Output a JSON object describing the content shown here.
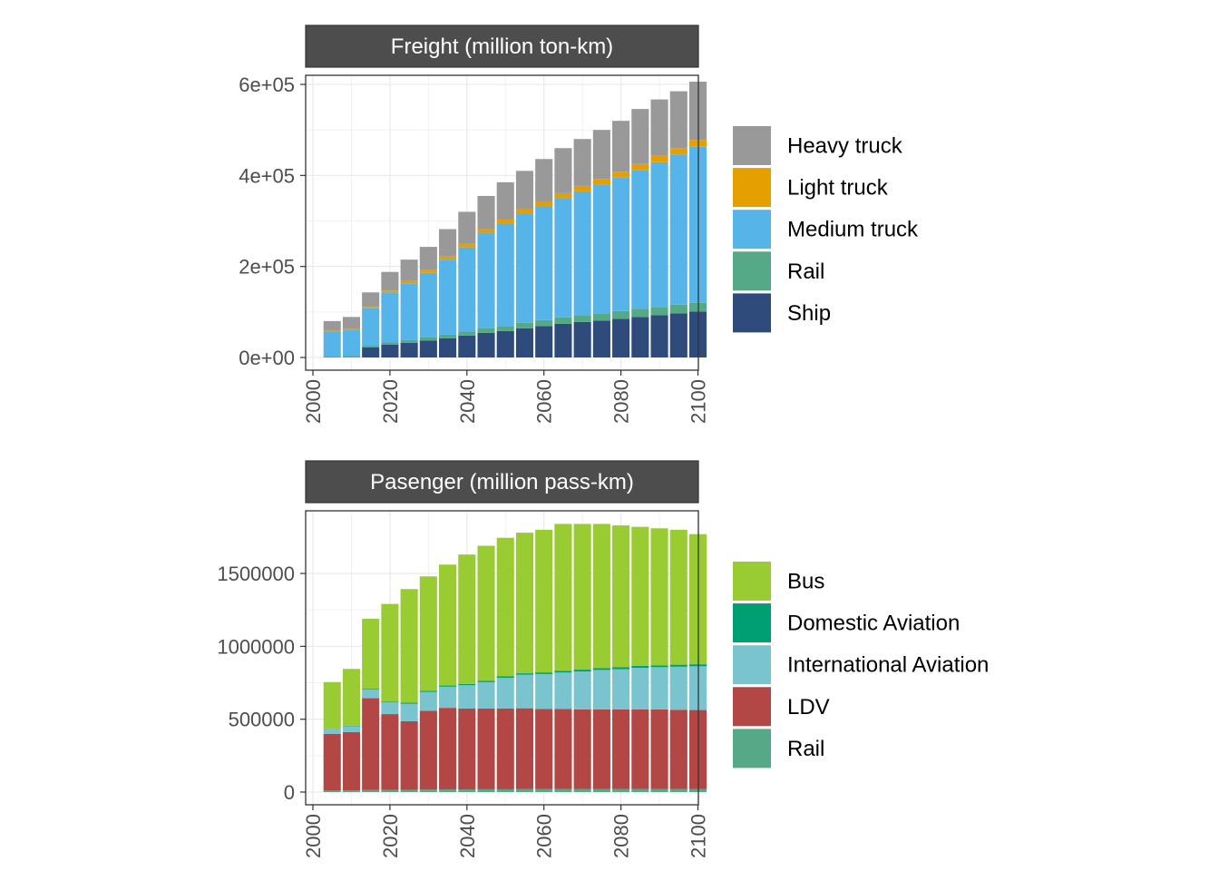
{
  "chart_data": [
    {
      "type": "bar",
      "stacked": true,
      "title": "Freight (million ton-km)",
      "x": [
        2005,
        2010,
        2015,
        2020,
        2025,
        2030,
        2035,
        2040,
        2045,
        2050,
        2055,
        2060,
        2065,
        2070,
        2075,
        2080,
        2085,
        2090,
        2095,
        2100
      ],
      "xlim": [
        2000,
        2102
      ],
      "ylim": [
        0,
        620000
      ],
      "x_ticks": [
        2000,
        2020,
        2040,
        2060,
        2080,
        2100
      ],
      "y_ticks": [
        0,
        200000,
        400000,
        600000
      ],
      "y_tick_labels": [
        "0e+00",
        "2e+05",
        "4e+05",
        "6e+05"
      ],
      "grid": true,
      "legend_position": "right",
      "series": [
        {
          "name": "Ship",
          "color": "#2F4B7C",
          "values": [
            0,
            0,
            22000,
            28000,
            32000,
            37000,
            42000,
            48000,
            54000,
            58000,
            64000,
            69000,
            74000,
            78000,
            81000,
            85000,
            89000,
            93000,
            97000,
            101000
          ]
        },
        {
          "name": "Rail",
          "color": "#56A986",
          "values": [
            2000,
            3000,
            4000,
            5000,
            6000,
            7000,
            8000,
            9000,
            10000,
            11000,
            12000,
            13000,
            14000,
            15000,
            16000,
            17000,
            18000,
            18000,
            19000,
            19000
          ]
        },
        {
          "name": "Medium truck",
          "color": "#56B4E9",
          "values": [
            55000,
            58000,
            82000,
            110000,
            125000,
            142000,
            165000,
            185000,
            210000,
            225000,
            240000,
            250000,
            262000,
            272000,
            283000,
            293000,
            305000,
            318000,
            330000,
            343000
          ]
        },
        {
          "name": "Light truck",
          "color": "#E69F00",
          "values": [
            2000,
            2000,
            3000,
            4000,
            5000,
            6000,
            7000,
            8000,
            8000,
            9000,
            10000,
            10000,
            11000,
            12000,
            12000,
            13000,
            13000,
            14000,
            14000,
            15000
          ]
        },
        {
          "name": "Heavy truck",
          "color": "#999999",
          "values": [
            21000,
            26000,
            32000,
            41000,
            47000,
            51000,
            60000,
            70000,
            73000,
            82000,
            84000,
            94000,
            99000,
            103000,
            108000,
            112000,
            121000,
            124000,
            125000,
            128000
          ]
        }
      ]
    },
    {
      "type": "bar",
      "stacked": true,
      "title": "Pasenger (million pass-km)",
      "x": [
        2005,
        2010,
        2015,
        2020,
        2025,
        2030,
        2035,
        2040,
        2045,
        2050,
        2055,
        2060,
        2065,
        2070,
        2075,
        2080,
        2085,
        2090,
        2095,
        2100
      ],
      "xlim": [
        2000,
        2102
      ],
      "ylim": [
        0,
        1930000
      ],
      "x_ticks": [
        2000,
        2020,
        2040,
        2060,
        2080,
        2100
      ],
      "y_ticks": [
        0,
        500000,
        1000000,
        1500000
      ],
      "y_tick_labels": [
        "0",
        "500000",
        "1000000",
        "1500000"
      ],
      "grid": true,
      "legend_position": "right",
      "series": [
        {
          "name": "Rail",
          "color": "#56A986",
          "values": [
            10000,
            12000,
            14000,
            15000,
            16000,
            17000,
            18000,
            18000,
            19000,
            19000,
            20000,
            20000,
            20000,
            20000,
            20000,
            20000,
            20000,
            20000,
            20000,
            20000
          ]
        },
        {
          "name": "LDV",
          "color": "#B24745",
          "values": [
            390000,
            400000,
            630000,
            520000,
            470000,
            540000,
            560000,
            555000,
            555000,
            555000,
            555000,
            550000,
            550000,
            548000,
            548000,
            548000,
            548000,
            547000,
            545000,
            543000
          ]
        },
        {
          "name": "International Aviation",
          "color": "#79C4CE",
          "values": [
            35000,
            40000,
            60000,
            80000,
            120000,
            130000,
            145000,
            160000,
            180000,
            210000,
            230000,
            240000,
            250000,
            260000,
            270000,
            275000,
            285000,
            290000,
            295000,
            300000
          ]
        },
        {
          "name": "Domestic Aviation",
          "color": "#009E73",
          "values": [
            2000,
            3000,
            5000,
            6000,
            7000,
            8000,
            8000,
            9000,
            9000,
            10000,
            10000,
            11000,
            11000,
            12000,
            12000,
            13000,
            13000,
            13000,
            14000,
            14000
          ]
        },
        {
          "name": "Bus",
          "color": "#99CC33",
          "values": [
            318000,
            390000,
            480000,
            670000,
            780000,
            785000,
            830000,
            888000,
            927000,
            951000,
            965000,
            979000,
            1009000,
            1000000,
            990000,
            974000,
            954000,
            940000,
            926000,
            893000
          ]
        }
      ]
    }
  ]
}
